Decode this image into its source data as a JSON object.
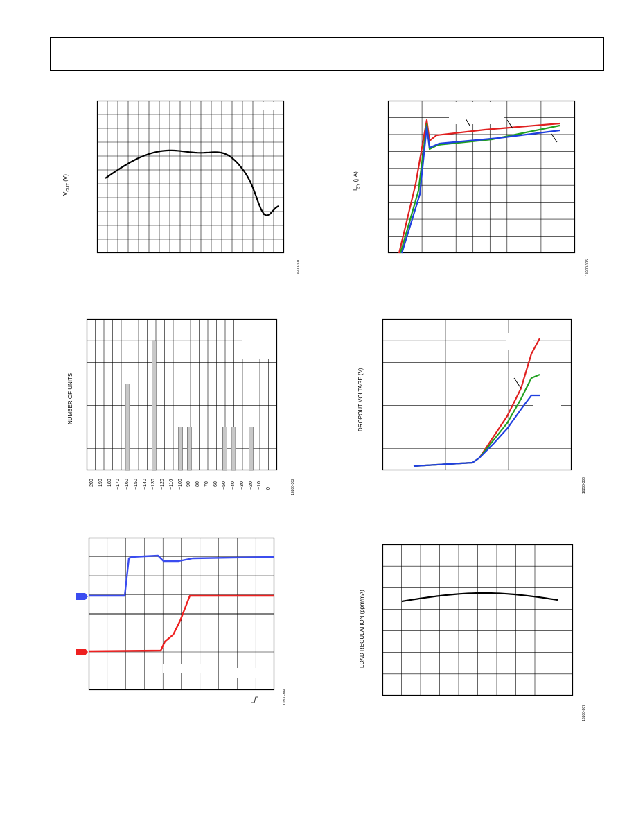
{
  "figures": [
    {
      "id": "vout-curve",
      "ylabel": "Vₒᵤₜ (V)",
      "ylabel_main": "V",
      "ylabel_sub": "OUT",
      "ylabel_unit": " (V)",
      "figure_id": "10200-301",
      "chart_data": {
        "type": "line",
        "series": [
          {
            "color": "#000000"
          }
        ]
      }
    },
    {
      "id": "isy-curve",
      "ylabel_main": "I",
      "ylabel_sub": "SY",
      "ylabel_unit": " (µA)",
      "figure_id": "10200-305",
      "chart_data": {
        "type": "line",
        "series": [
          {
            "color": "#e02020"
          },
          {
            "color": "#20a020"
          },
          {
            "color": "#2040e0"
          }
        ]
      }
    },
    {
      "id": "histogram",
      "ylabel": "NUMBER OF UNITS",
      "figure_id": "10200-302",
      "chart_data": {
        "type": "bar",
        "categories": [
          "−200",
          "−190",
          "−180",
          "−170",
          "−160",
          "−150",
          "−140",
          "−130",
          "−120",
          "−110",
          "−100",
          "−90",
          "−80",
          "−70",
          "−60",
          "−50",
          "−40",
          "−30",
          "−20",
          "−10",
          "0"
        ],
        "values": [
          0,
          0,
          0,
          0,
          4,
          0,
          0,
          6,
          0,
          0,
          2,
          2,
          0,
          0,
          0,
          2,
          2,
          0,
          2,
          0,
          0
        ],
        "ylim": [
          0,
          7
        ]
      }
    },
    {
      "id": "dropout",
      "ylabel": "DROPOUT VOLTAGE (V)",
      "figure_id": "10200-306",
      "chart_data": {
        "type": "line",
        "series": [
          {
            "color": "#e02020"
          },
          {
            "color": "#20a020"
          },
          {
            "color": "#2040e0"
          }
        ]
      }
    },
    {
      "id": "scope",
      "figure_id": "10200-304",
      "chart_data": {
        "type": "line",
        "series": [
          {
            "color": "#3a4cf0"
          },
          {
            "color": "#ee2020"
          }
        ]
      }
    },
    {
      "id": "load-regulation",
      "ylabel": "LOAD REGULATION (ppm/mA)",
      "figure_id": "10200-307",
      "chart_data": {
        "type": "line",
        "series": [
          {
            "color": "#000000"
          }
        ]
      }
    }
  ]
}
